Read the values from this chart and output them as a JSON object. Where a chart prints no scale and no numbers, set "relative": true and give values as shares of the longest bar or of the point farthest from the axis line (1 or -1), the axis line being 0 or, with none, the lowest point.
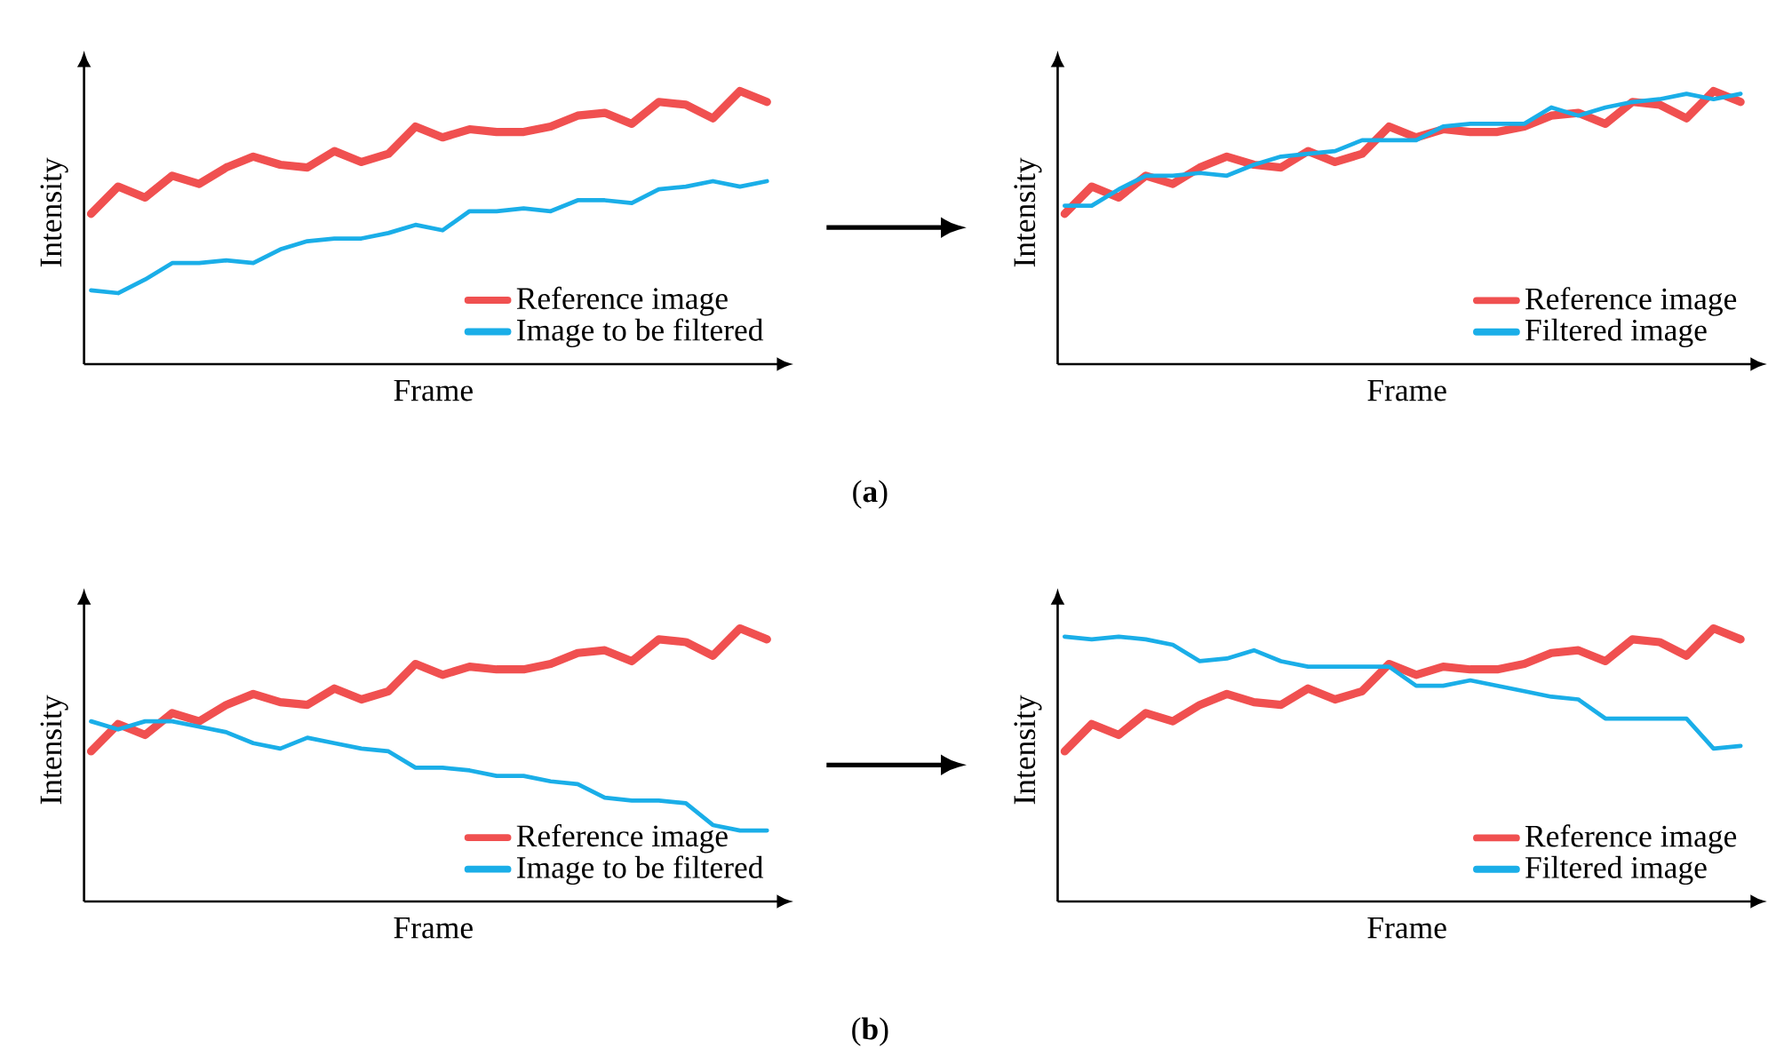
{
  "chart_data": [
    {
      "type": "line",
      "relative": true,
      "xlabel": "Frame",
      "ylabel": "Intensity",
      "legend": "bottom right",
      "annotations": [
        "(**a**)"
      ],
      "categories": [
        null,
        null,
        null,
        null,
        null,
        null,
        null,
        null,
        null,
        null,
        null,
        null,
        null,
        null,
        null,
        null,
        null,
        null,
        null,
        null,
        null,
        null,
        null,
        null,
        null,
        null
      ],
      "series": [
        {
          "name": "Reference image",
          "color": "#f05050",
          "values": [
            0.55,
            0.65,
            0.61,
            0.69,
            0.66,
            0.72,
            0.76,
            0.73,
            0.72,
            0.78,
            0.74,
            0.77,
            0.87,
            0.83,
            0.86,
            0.85,
            0.85,
            0.87,
            0.91,
            0.92,
            0.88,
            0.96,
            0.95,
            0.9,
            1.0,
            0.96
          ]
        },
        {
          "name": "Image to be filtered",
          "color": "#1aaee8",
          "values": [
            0.27,
            0.26,
            0.31,
            0.37,
            0.37,
            0.38,
            0.37,
            0.42,
            0.45,
            0.46,
            0.46,
            0.48,
            0.51,
            0.49,
            0.56,
            0.56,
            0.57,
            0.56,
            0.6,
            0.6,
            0.59,
            0.64,
            0.65,
            0.67,
            0.65,
            0.67
          ]
        }
      ]
    },
    {
      "type": "line",
      "relative": true,
      "xlabel": "Frame",
      "ylabel": "Intensity",
      "legend": "bottom right",
      "categories": [
        null,
        null,
        null,
        null,
        null,
        null,
        null,
        null,
        null,
        null,
        null,
        null,
        null,
        null,
        null,
        null,
        null,
        null,
        null,
        null,
        null,
        null,
        null,
        null,
        null,
        null
      ],
      "series": [
        {
          "name": "Reference image",
          "color": "#f05050",
          "values": [
            0.55,
            0.65,
            0.61,
            0.69,
            0.66,
            0.72,
            0.76,
            0.73,
            0.72,
            0.78,
            0.74,
            0.77,
            0.87,
            0.83,
            0.86,
            0.85,
            0.85,
            0.87,
            0.91,
            0.92,
            0.88,
            0.96,
            0.95,
            0.9,
            1.0,
            0.96
          ]
        },
        {
          "name": "Filtered image",
          "color": "#1aaee8",
          "values": [
            0.58,
            0.58,
            0.64,
            0.69,
            0.69,
            0.7,
            0.69,
            0.73,
            0.76,
            0.77,
            0.78,
            0.82,
            0.82,
            0.82,
            0.87,
            0.88,
            0.88,
            0.88,
            0.94,
            0.91,
            0.94,
            0.96,
            0.97,
            0.99,
            0.97,
            0.99
          ]
        }
      ]
    },
    {
      "type": "line",
      "relative": true,
      "xlabel": "Frame",
      "ylabel": "Intensity",
      "legend": "bottom right",
      "annotations": [
        "(**b**)"
      ],
      "categories": [
        null,
        null,
        null,
        null,
        null,
        null,
        null,
        null,
        null,
        null,
        null,
        null,
        null,
        null,
        null,
        null,
        null,
        null,
        null,
        null,
        null,
        null,
        null,
        null,
        null,
        null
      ],
      "series": [
        {
          "name": "Reference image",
          "color": "#f05050",
          "values": [
            0.55,
            0.65,
            0.61,
            0.69,
            0.66,
            0.72,
            0.76,
            0.73,
            0.72,
            0.78,
            0.74,
            0.77,
            0.87,
            0.83,
            0.86,
            0.85,
            0.85,
            0.87,
            0.91,
            0.92,
            0.88,
            0.96,
            0.95,
            0.9,
            1.0,
            0.96
          ]
        },
        {
          "name": "Image to be filtered",
          "color": "#1aaee8",
          "values": [
            0.66,
            0.63,
            0.66,
            0.66,
            0.64,
            0.62,
            0.58,
            0.56,
            0.6,
            0.58,
            0.56,
            0.55,
            0.49,
            0.49,
            0.48,
            0.46,
            0.46,
            0.44,
            0.43,
            0.38,
            0.37,
            0.37,
            0.36,
            0.28,
            0.26,
            0.26
          ]
        }
      ]
    },
    {
      "type": "line",
      "relative": true,
      "xlabel": "Frame",
      "ylabel": "Intensity",
      "legend": "bottom right",
      "categories": [
        null,
        null,
        null,
        null,
        null,
        null,
        null,
        null,
        null,
        null,
        null,
        null,
        null,
        null,
        null,
        null,
        null,
        null,
        null,
        null,
        null,
        null,
        null,
        null,
        null,
        null
      ],
      "series": [
        {
          "name": "Reference image",
          "color": "#f05050",
          "values": [
            0.55,
            0.65,
            0.61,
            0.69,
            0.66,
            0.72,
            0.76,
            0.73,
            0.72,
            0.78,
            0.74,
            0.77,
            0.87,
            0.83,
            0.86,
            0.85,
            0.85,
            0.87,
            0.91,
            0.92,
            0.88,
            0.96,
            0.95,
            0.9,
            1.0,
            0.96
          ]
        },
        {
          "name": "Filtered image",
          "color": "#1aaee8",
          "values": [
            0.97,
            0.96,
            0.97,
            0.96,
            0.94,
            0.88,
            0.89,
            0.92,
            0.88,
            0.86,
            0.86,
            0.86,
            0.86,
            0.79,
            0.79,
            0.81,
            0.79,
            0.77,
            0.75,
            0.74,
            0.67,
            0.67,
            0.67,
            0.67,
            0.56,
            0.57
          ]
        }
      ]
    }
  ]
}
